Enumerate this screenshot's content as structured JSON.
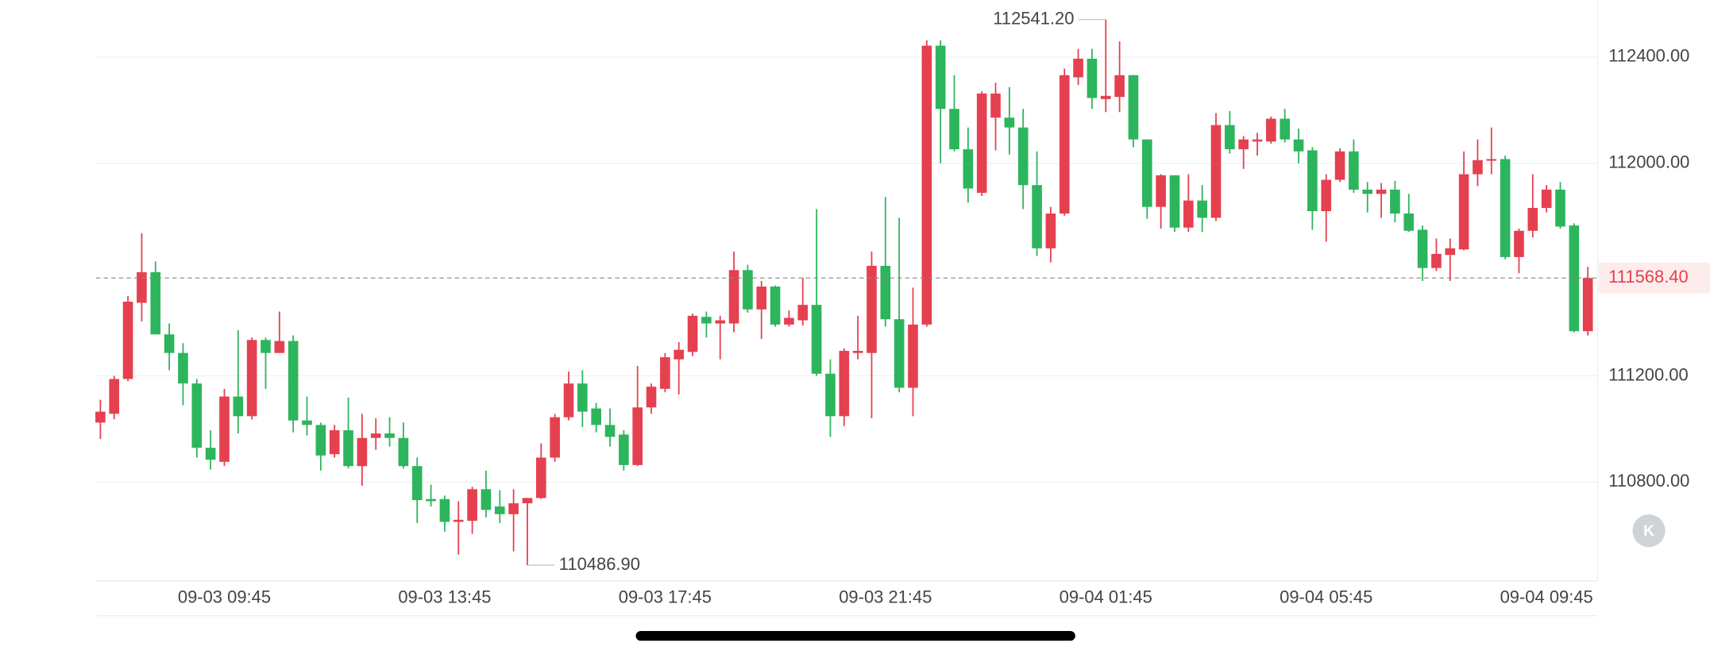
{
  "chart_data": {
    "type": "candlestick",
    "categories": [
      null,
      null,
      null,
      null,
      null,
      null,
      null,
      null,
      null,
      "09-03 09:45",
      null,
      null,
      null,
      null,
      null,
      null,
      null,
      null,
      null,
      null,
      null,
      null,
      null,
      null,
      null,
      "09-03 13:45",
      null,
      null,
      null,
      null,
      null,
      null,
      null,
      null,
      null,
      null,
      null,
      null,
      null,
      null,
      null,
      "09-03 17:45",
      null,
      null,
      null,
      null,
      null,
      null,
      null,
      null,
      null,
      null,
      null,
      null,
      null,
      null,
      null,
      "09-03 21:45",
      null,
      null,
      null,
      null,
      null,
      null,
      null,
      null,
      null,
      null,
      null,
      null,
      null,
      null,
      null,
      "09-04 01:45",
      null,
      null,
      null,
      null,
      null,
      null,
      null,
      null,
      null,
      null,
      null,
      null,
      null,
      null,
      null,
      "09-04 05:45",
      null,
      null,
      null,
      null,
      null,
      null,
      null,
      null,
      null,
      null,
      null,
      null,
      null,
      null,
      null,
      "09-04 09:45",
      null,
      null,
      null
    ],
    "open": [
      111024,
      111057,
      111188,
      111475,
      111590,
      111356,
      111286,
      111171,
      110929,
      110876,
      111122,
      111048,
      111335,
      111286,
      111331,
      111032,
      111015,
      110905,
      110995,
      110860,
      110966,
      110983,
      110966,
      110860,
      110736,
      110736,
      110650,
      110654,
      110773,
      110708,
      110679,
      110720,
      110740,
      110892,
      111044,
      111171,
      111077,
      111015,
      110979,
      110864,
      111081,
      111151,
      111262,
      111290,
      111422,
      111397,
      111397,
      111598,
      111450,
      111536,
      111393,
      111409,
      111467,
      111208,
      111048,
      111286,
      111286,
      111614,
      111413,
      111155,
      111393,
      112443,
      112205,
      112053,
      111889,
      112172,
      112172,
      112135,
      111918,
      111680,
      111811,
      112324,
      112394,
      112242,
      112250,
      112332,
      112090,
      111836,
      111955,
      111758,
      111860,
      111795,
      112144,
      112053,
      112082,
      112082,
      112168,
      112090,
      112049,
      111820,
      111938,
      112045,
      111901,
      111885,
      111901,
      111811,
      111750,
      111606,
      111655,
      111676,
      111959,
      112012,
      112016,
      111647,
      111746,
      111832,
      111901,
      111766,
      111368
    ],
    "high": [
      111110,
      111200,
      111500,
      111737,
      111631,
      111397,
      111323,
      111188,
      110995,
      111151,
      111372,
      111344,
      111344,
      111442,
      111352,
      111122,
      111024,
      111015,
      111118,
      111057,
      111040,
      111044,
      111024,
      110892,
      110790,
      110749,
      110728,
      110782,
      110843,
      110769,
      110773,
      110740,
      110946,
      111057,
      111216,
      111221,
      111098,
      111077,
      110995,
      111237,
      111171,
      111286,
      111327,
      111434,
      111442,
      111426,
      111668,
      111618,
      111557,
      111540,
      111446,
      111569,
      111828,
      111262,
      111303,
      111426,
      111668,
      111873,
      111795,
      111532,
      112463,
      112463,
      112332,
      112135,
      112271,
      112303,
      112287,
      112205,
      112045,
      111836,
      112357,
      112431,
      112431,
      112541.2,
      112459,
      112332,
      112090,
      111959,
      111955,
      111959,
      111918,
      112189,
      112197,
      112103,
      112115,
      112176,
      112205,
      112131,
      112061,
      111959,
      112057,
      112090,
      111930,
      111926,
      111934,
      111885,
      111766,
      111717,
      111717,
      112045,
      112090,
      112135,
      112029,
      111754,
      111959,
      111918,
      111930,
      111774,
      111610
    ],
    "low": [
      110962,
      111036,
      111180,
      111405,
      111356,
      111221,
      111089,
      110892,
      110847,
      110860,
      110983,
      111036,
      111151,
      111286,
      110987,
      110975,
      110843,
      110892,
      110851,
      110786,
      110921,
      110933,
      110851,
      110646,
      110708,
      110613,
      110527,
      110605,
      110667,
      110646,
      110539,
      110486.9,
      110736,
      110876,
      111032,
      111007,
      110987,
      110933,
      110843,
      110860,
      111057,
      111138,
      111130,
      111274,
      111344,
      111262,
      111364,
      111438,
      111339,
      111385,
      111385,
      111389,
      111200,
      110970,
      111011,
      111262,
      111040,
      111385,
      111138,
      111048,
      111385,
      112000,
      112045,
      111852,
      111877,
      112049,
      112033,
      111828,
      111651,
      111627,
      111803,
      112295,
      112205,
      112193,
      112193,
      112061,
      111791,
      111754,
      111742,
      111742,
      111742,
      111783,
      112037,
      111979,
      112029,
      112074,
      112078,
      112000,
      111750,
      111705,
      111930,
      111889,
      111815,
      111795,
      111778,
      111742,
      111557,
      111594,
      111557,
      111672,
      111914,
      111959,
      111639,
      111586,
      111721,
      111815,
      111754,
      111364,
      111352
    ],
    "close": [
      111065,
      111188,
      111479,
      111590,
      111356,
      111286,
      111171,
      110929,
      110884,
      111122,
      111048,
      111335,
      111286,
      111331,
      111032,
      111015,
      110900,
      110995,
      110860,
      110966,
      110983,
      110966,
      110860,
      110732,
      110728,
      110650,
      110658,
      110773,
      110695,
      110679,
      110720,
      110740,
      110892,
      111044,
      111171,
      111065,
      111015,
      110970,
      110864,
      111081,
      111159,
      111270,
      111298,
      111426,
      111397,
      111409,
      111598,
      111450,
      111536,
      111393,
      111418,
      111467,
      111208,
      111048,
      111294,
      111294,
      111614,
      111413,
      111155,
      111393,
      112443,
      112205,
      112053,
      111905,
      112263,
      112263,
      112135,
      111918,
      111680,
      111811,
      112332,
      112394,
      112246,
      112254,
      112332,
      112090,
      111836,
      111955,
      111758,
      111860,
      111795,
      112144,
      112053,
      112090,
      112090,
      112168,
      112090,
      112045,
      111820,
      111938,
      112045,
      111901,
      111885,
      111901,
      111811,
      111746,
      111606,
      111659,
      111680,
      111959,
      112012,
      112016,
      111647,
      111746,
      111832,
      111901,
      111762,
      111368,
      111568.4
    ],
    "up_color": "#e5404f",
    "down_color": "#2db55d",
    "ylim": [
      110428,
      112615
    ],
    "yticks": [
      {
        "value": 110800,
        "label": "110800.00"
      },
      {
        "value": 111200,
        "label": "111200.00"
      },
      {
        "value": 112000,
        "label": "112000.00"
      },
      {
        "value": 112400,
        "label": "112400.00"
      }
    ],
    "grid": true,
    "last_price": {
      "value": 111568.4,
      "label": "111568.40"
    },
    "annotations": [
      {
        "value": 112541.2,
        "label": "112541.20"
      },
      {
        "value": 110486.9,
        "label": "110486.90"
      }
    ],
    "badge": "K"
  }
}
